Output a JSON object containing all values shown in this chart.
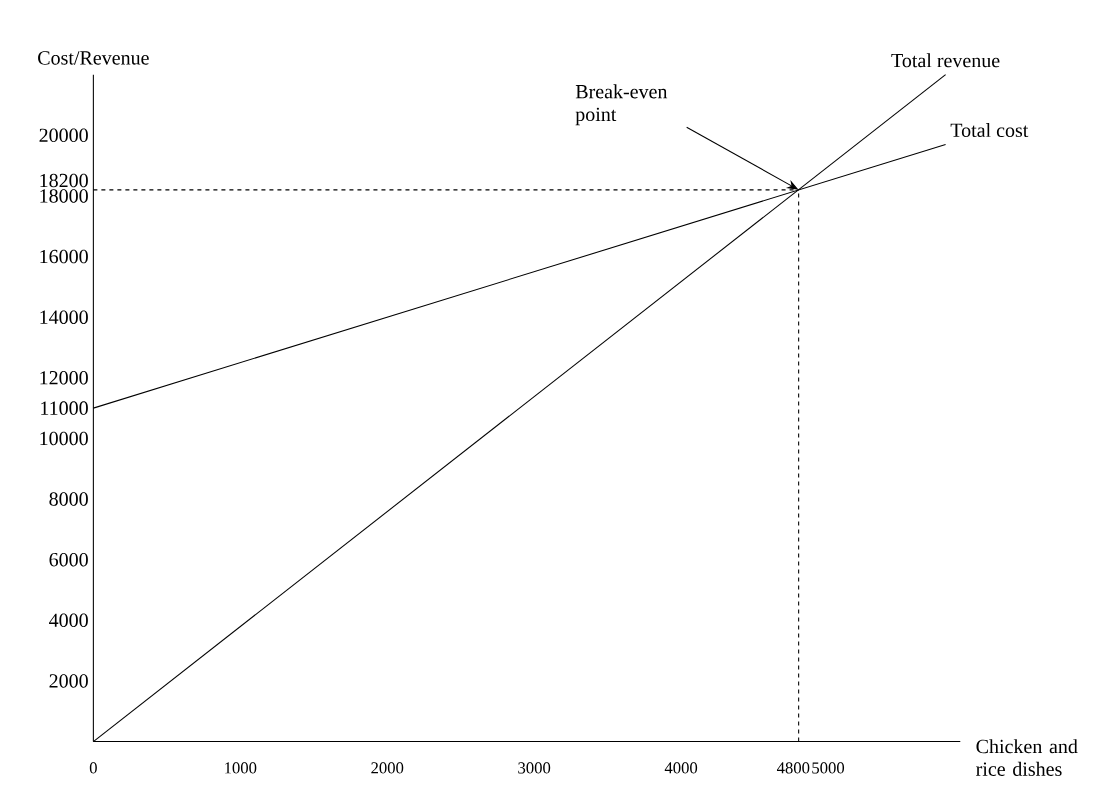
{
  "chart_data": {
    "type": "line",
    "xlabel": "Chicken and rice dishes",
    "ylabel": "Cost/Revenue",
    "x": [
      0,
      5800
    ],
    "series": [
      {
        "name": "Total revenue",
        "color": "#000000",
        "values": [
          0,
          22000
        ]
      },
      {
        "name": "Total cost",
        "color": "#000000",
        "values": [
          11000,
          19700
        ]
      }
    ],
    "xlim": [
      0,
      5900
    ],
    "ylim": [
      0,
      22000
    ],
    "xticks": [
      0,
      1000,
      2000,
      3000,
      4000,
      4800,
      5000
    ],
    "yticks": [
      2000,
      4000,
      6000,
      8000,
      10000,
      11000,
      12000,
      14000,
      16000,
      18000,
      18200,
      20000
    ],
    "ref_lines": [
      {
        "axis": "x",
        "value": 4800,
        "line_style": "dashed",
        "color": "#000000"
      },
      {
        "axis": "y",
        "value": 18200,
        "line_style": "dashed",
        "color": "#000000"
      }
    ],
    "annotations": [
      {
        "text": "Break-even point",
        "x": 4800,
        "y": 18200
      }
    ],
    "marker": "none"
  }
}
